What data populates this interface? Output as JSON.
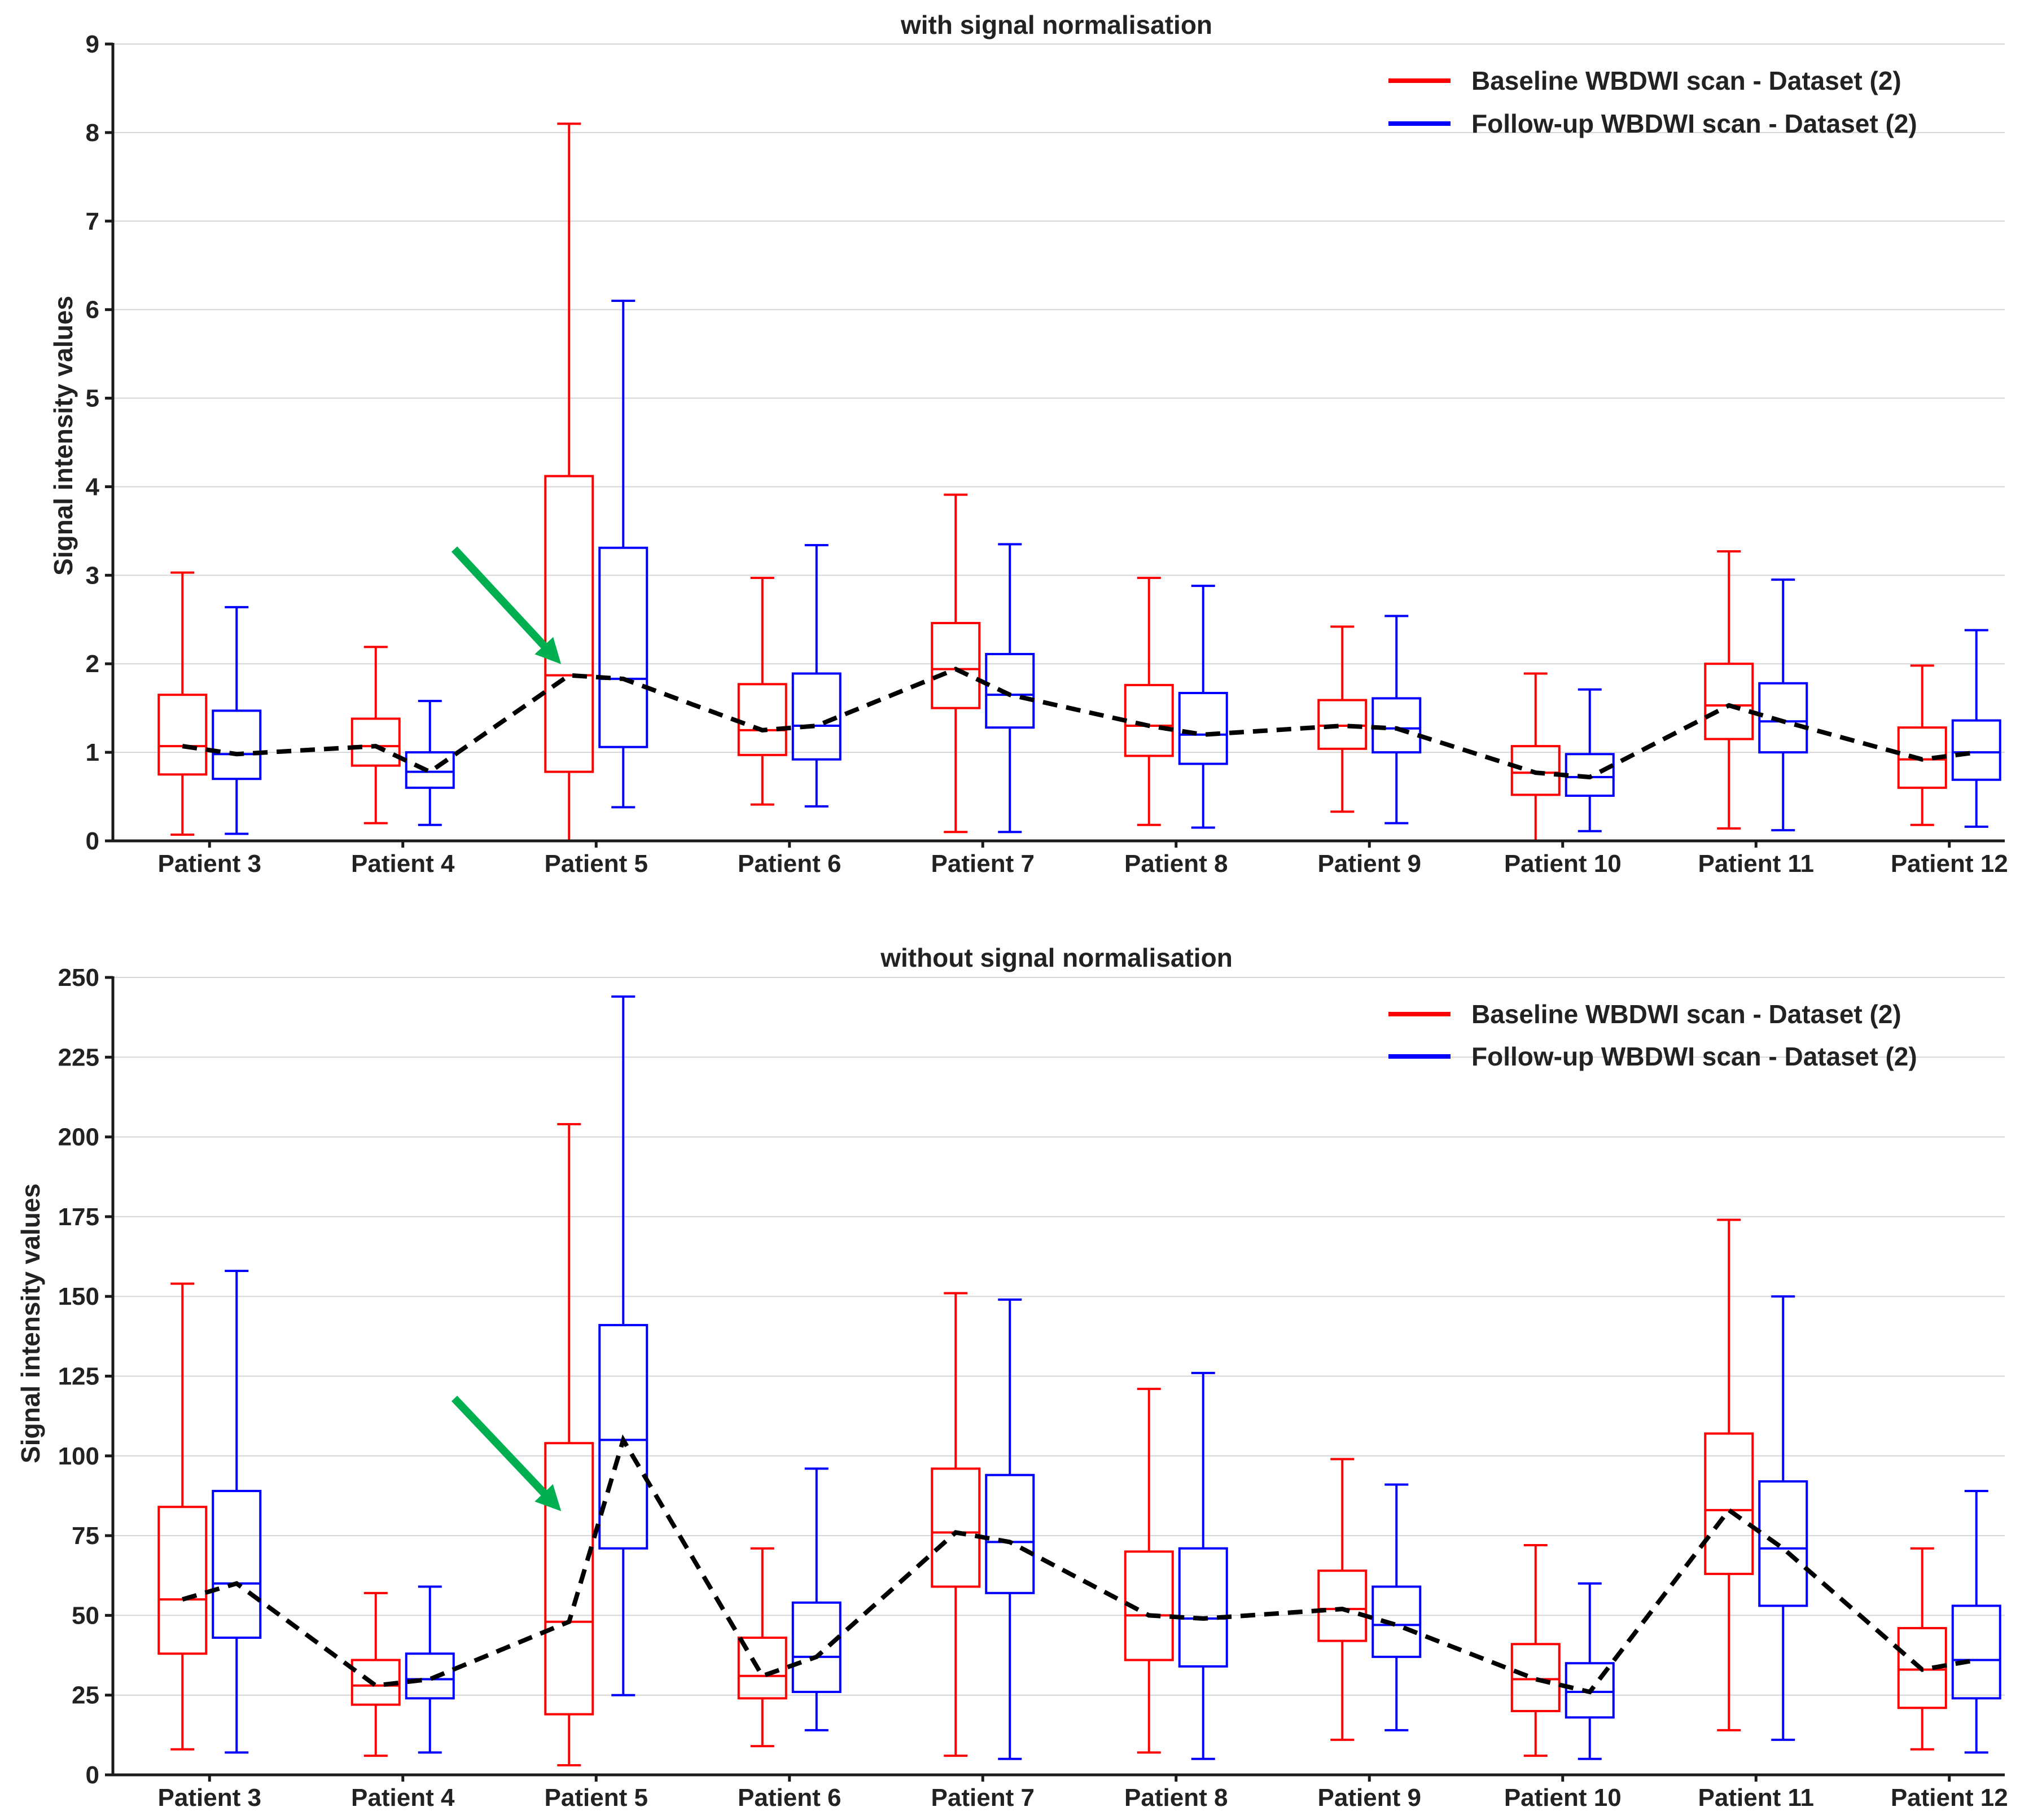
{
  "chart_data": [
    {
      "type": "box",
      "title": "with signal normalisation",
      "xlabel": "",
      "ylabel": "Signal intensity values",
      "ylim": [
        0,
        9
      ],
      "yticks": [
        0,
        1,
        2,
        3,
        4,
        5,
        6,
        7,
        8,
        9
      ],
      "grid": true,
      "legend_position": "top-right",
      "categories": [
        "Patient 3",
        "Patient 4",
        "Patient 5",
        "Patient 6",
        "Patient 7",
        "Patient 8",
        "Patient 9",
        "Patient 10",
        "Patient 11",
        "Patient 12"
      ],
      "series": [
        {
          "name": "Baseline WBDWI scan - Dataset (2)",
          "color": "#ff0000",
          "boxes": [
            {
              "min": 0.07,
              "q1": 0.75,
              "median": 1.07,
              "q3": 1.65,
              "max": 3.03
            },
            {
              "min": 0.2,
              "q1": 0.85,
              "median": 1.07,
              "q3": 1.38,
              "max": 2.19
            },
            {
              "min": 0.0,
              "q1": 0.78,
              "median": 1.87,
              "q3": 4.12,
              "max": 8.1
            },
            {
              "min": 0.41,
              "q1": 0.97,
              "median": 1.25,
              "q3": 1.77,
              "max": 2.97
            },
            {
              "min": 0.1,
              "q1": 1.5,
              "median": 1.94,
              "q3": 2.46,
              "max": 3.91
            },
            {
              "min": 0.18,
              "q1": 0.96,
              "median": 1.3,
              "q3": 1.76,
              "max": 2.97
            },
            {
              "min": 0.33,
              "q1": 1.04,
              "median": 1.3,
              "q3": 1.59,
              "max": 2.42
            },
            {
              "min": 0.0,
              "q1": 0.52,
              "median": 0.77,
              "q3": 1.07,
              "max": 1.89
            },
            {
              "min": 0.14,
              "q1": 1.15,
              "median": 1.53,
              "q3": 2.0,
              "max": 3.27
            },
            {
              "min": 0.18,
              "q1": 0.6,
              "median": 0.92,
              "q3": 1.28,
              "max": 1.98
            }
          ]
        },
        {
          "name": "Follow-up WBDWI scan - Dataset (2)",
          "color": "#0000ff",
          "boxes": [
            {
              "min": 0.08,
              "q1": 0.7,
              "median": 0.98,
              "q3": 1.47,
              "max": 2.64
            },
            {
              "min": 0.18,
              "q1": 0.6,
              "median": 0.78,
              "q3": 1.0,
              "max": 1.58
            },
            {
              "min": 0.38,
              "q1": 1.06,
              "median": 1.83,
              "q3": 3.31,
              "max": 6.1
            },
            {
              "min": 0.39,
              "q1": 0.92,
              "median": 1.3,
              "q3": 1.89,
              "max": 3.34
            },
            {
              "min": 0.1,
              "q1": 1.28,
              "median": 1.65,
              "q3": 2.11,
              "max": 3.35
            },
            {
              "min": 0.15,
              "q1": 0.87,
              "median": 1.2,
              "q3": 1.67,
              "max": 2.88
            },
            {
              "min": 0.2,
              "q1": 1.0,
              "median": 1.27,
              "q3": 1.61,
              "max": 2.54
            },
            {
              "min": 0.11,
              "q1": 0.51,
              "median": 0.72,
              "q3": 0.98,
              "max": 1.71
            },
            {
              "min": 0.12,
              "q1": 1.0,
              "median": 1.35,
              "q3": 1.78,
              "max": 2.95
            },
            {
              "min": 0.16,
              "q1": 0.69,
              "median": 1.0,
              "q3": 1.36,
              "max": 2.38
            }
          ]
        }
      ],
      "annotation": {
        "type": "arrow",
        "color": "#00b050",
        "target_category": "Patient 5",
        "target_value": 2.0
      }
    },
    {
      "type": "box",
      "title": "without signal normalisation",
      "xlabel": "",
      "ylabel": "Signal intensity values",
      "ylim": [
        0,
        250
      ],
      "yticks": [
        0,
        25,
        50,
        75,
        100,
        125,
        150,
        175,
        200,
        225,
        250
      ],
      "grid": true,
      "legend_position": "top-right",
      "categories": [
        "Patient 3",
        "Patient 4",
        "Patient 5",
        "Patient 6",
        "Patient 7",
        "Patient 8",
        "Patient 9",
        "Patient 10",
        "Patient 11",
        "Patient 12"
      ],
      "series": [
        {
          "name": "Baseline WBDWI scan - Dataset (2)",
          "color": "#ff0000",
          "boxes": [
            {
              "min": 8,
              "q1": 38,
              "median": 55,
              "q3": 84,
              "max": 154
            },
            {
              "min": 6,
              "q1": 22,
              "median": 28,
              "q3": 36,
              "max": 57
            },
            {
              "min": 3,
              "q1": 19,
              "median": 48,
              "q3": 104,
              "max": 204
            },
            {
              "min": 9,
              "q1": 24,
              "median": 31,
              "q3": 43,
              "max": 71
            },
            {
              "min": 6,
              "q1": 59,
              "median": 76,
              "q3": 96,
              "max": 151
            },
            {
              "min": 7,
              "q1": 36,
              "median": 50,
              "q3": 70,
              "max": 121
            },
            {
              "min": 11,
              "q1": 42,
              "median": 52,
              "q3": 64,
              "max": 99
            },
            {
              "min": 6,
              "q1": 20,
              "median": 30,
              "q3": 41,
              "max": 72
            },
            {
              "min": 14,
              "q1": 63,
              "median": 83,
              "q3": 107,
              "max": 174
            },
            {
              "min": 8,
              "q1": 21,
              "median": 33,
              "q3": 46,
              "max": 71
            }
          ]
        },
        {
          "name": "Follow-up WBDWI scan - Dataset (2)",
          "color": "#0000ff",
          "boxes": [
            {
              "min": 7,
              "q1": 43,
              "median": 60,
              "q3": 89,
              "max": 158
            },
            {
              "min": 7,
              "q1": 24,
              "median": 30,
              "q3": 38,
              "max": 59
            },
            {
              "min": 25,
              "q1": 71,
              "median": 105,
              "q3": 141,
              "max": 244
            },
            {
              "min": 14,
              "q1": 26,
              "median": 37,
              "q3": 54,
              "max": 96
            },
            {
              "min": 5,
              "q1": 57,
              "median": 73,
              "q3": 94,
              "max": 149
            },
            {
              "min": 5,
              "q1": 34,
              "median": 49,
              "q3": 71,
              "max": 126
            },
            {
              "min": 14,
              "q1": 37,
              "median": 47,
              "q3": 59,
              "max": 91
            },
            {
              "min": 5,
              "q1": 18,
              "median": 26,
              "q3": 35,
              "max": 60
            },
            {
              "min": 11,
              "q1": 53,
              "median": 71,
              "q3": 92,
              "max": 150
            },
            {
              "min": 7,
              "q1": 24,
              "median": 36,
              "q3": 53,
              "max": 89
            }
          ]
        }
      ],
      "annotation": {
        "type": "arrow",
        "color": "#00b050",
        "target_category": "Patient 5",
        "target_value": 82
      }
    }
  ]
}
